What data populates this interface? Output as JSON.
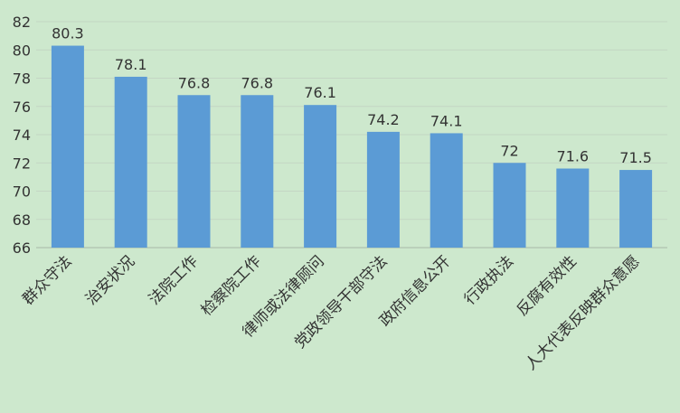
{
  "colors": {
    "background": "#cde8cd",
    "bar": "#5b9bd5",
    "grid": "#c4d6c4",
    "axis": "#a6b8a6",
    "text": "#333333"
  },
  "chart_data": {
    "type": "bar",
    "title": "",
    "xlabel": "",
    "ylabel": "",
    "ylim": [
      66,
      82
    ],
    "yticks": [
      66,
      68,
      70,
      72,
      74,
      76,
      78,
      80,
      82
    ],
    "grid": true,
    "legend": "none",
    "categories": [
      "群众守法",
      "治安状况",
      "法院工作",
      "检察院工作",
      "律师或法律顾问",
      "党政领导干部守法",
      "政府信息公开",
      "行政执法",
      "反腐有效性",
      "人大代表反映群众意愿"
    ],
    "values": [
      80.3,
      78.1,
      76.8,
      76.8,
      76.1,
      74.2,
      74.1,
      72,
      71.6,
      71.5
    ],
    "data_labels": [
      "80.3",
      "78.1",
      "76.8",
      "76.8",
      "76.1",
      "74.2",
      "74.1",
      "72",
      "71.6",
      "71.5"
    ]
  }
}
